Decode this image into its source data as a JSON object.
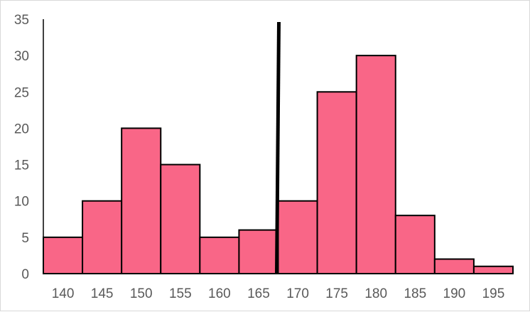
{
  "chart_data": {
    "type": "bar",
    "title": "",
    "xlabel": "",
    "ylabel": "",
    "categories": [
      "140",
      "145",
      "150",
      "155",
      "160",
      "165",
      "170",
      "175",
      "180",
      "185",
      "190",
      "195"
    ],
    "values": [
      5,
      10,
      20,
      15,
      5,
      6,
      10,
      25,
      30,
      8,
      2,
      1
    ],
    "ylim": [
      0,
      35
    ],
    "yticks": [
      0,
      5,
      10,
      15,
      20,
      25,
      30,
      35
    ],
    "grid": false,
    "legend": "none",
    "bar_color": "#F96687",
    "bar_edge_color": "#000000",
    "marker_line": {
      "x_between_categories": [
        "165",
        "170"
      ],
      "color": "#000000"
    }
  }
}
